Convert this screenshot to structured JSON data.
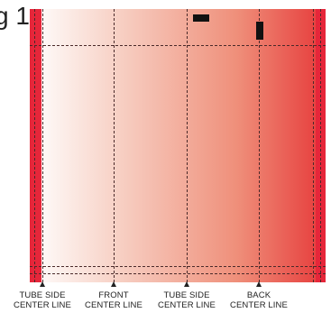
{
  "figure": {
    "label": "g 1"
  },
  "captions": [
    {
      "line1": "TUBE SIDE",
      "line2": "CENTER LINE"
    },
    {
      "line1": "FRONT",
      "line2": "CENTER LINE"
    },
    {
      "line1": "TUBE SIDE",
      "line2": "CENTER LINE"
    },
    {
      "line1": "BACK",
      "line2": "CENTER LINE"
    }
  ],
  "colors": {
    "gradient_start": "#ffffff",
    "gradient_end": "#e63a3a",
    "edge_strip": "#e6263a",
    "guide_lines": "#4a2a2a",
    "marks": "#111111"
  }
}
